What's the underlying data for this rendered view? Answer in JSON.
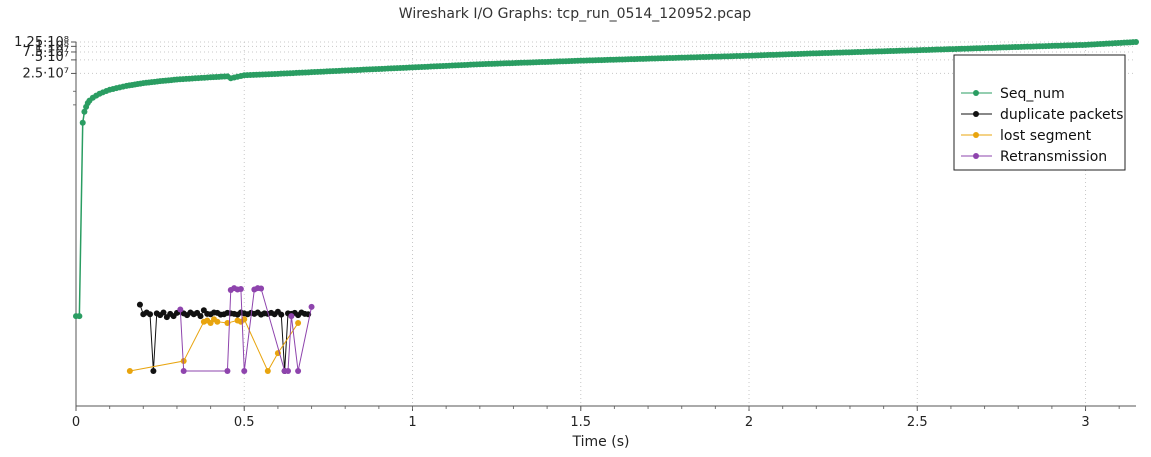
{
  "chart_data": {
    "type": "line",
    "title": "Wireshark I/O Graphs: tcp_run_0514_120952.pcap",
    "xlabel": "Time (s)",
    "ylabel": "",
    "x_ticks": [
      "0",
      "0.5",
      "1",
      "1.5",
      "2",
      "2.5",
      "3"
    ],
    "y_ticks": [
      "1.25·10⁸",
      "1·10⁸",
      "7.5·10⁷",
      "5·10⁷",
      "2.5·10⁷"
    ],
    "y_scale": "log",
    "xlim": [
      0,
      3.15
    ],
    "grid": true,
    "legend_position": "top-right",
    "series": [
      {
        "name": "Seq_num",
        "color": "#2a9d62",
        "x": [
          0.0,
          0.01,
          0.02,
          0.025,
          0.03,
          0.035,
          0.04,
          0.05,
          0.06,
          0.07,
          0.08,
          0.1,
          0.12,
          0.15,
          0.2,
          0.25,
          0.3,
          0.4,
          0.45,
          0.46,
          0.5,
          0.6,
          0.8,
          1.0,
          1.2,
          1.5,
          1.8,
          2.0,
          2.2,
          2.5,
          2.8,
          3.0,
          3.15
        ],
        "y": [
          100,
          100,
          2000000,
          3500000,
          4500000,
          5500000,
          6200000,
          7200000,
          8000000,
          8800000,
          9500000,
          10800000,
          11800000,
          13200000,
          15200000,
          16800000,
          18300000,
          20500000,
          21500000,
          19500000,
          22800000,
          24500000,
          29000000,
          34000000,
          40000000,
          48000000,
          56000000,
          62000000,
          70000000,
          82000000,
          97000000,
          108000000,
          125000000
        ]
      },
      {
        "name": "duplicate packets",
        "color": "#111111",
        "x": [
          0.19,
          0.2,
          0.21,
          0.22,
          0.23,
          0.24,
          0.25,
          0.26,
          0.27,
          0.28,
          0.29,
          0.3,
          0.31,
          0.32,
          0.33,
          0.34,
          0.35,
          0.36,
          0.37,
          0.38,
          0.39,
          0.4,
          0.41,
          0.42,
          0.43,
          0.44,
          0.45,
          0.46,
          0.47,
          0.48,
          0.49,
          0.5,
          0.51,
          0.52,
          0.53,
          0.54,
          0.55,
          0.56,
          0.57,
          0.58,
          0.59,
          0.6,
          0.61,
          0.62,
          0.63,
          0.64,
          0.65,
          0.66,
          0.67,
          0.68,
          0.69
        ],
        "y": [
          180,
          110,
          120,
          110,
          6,
          115,
          105,
          120,
          95,
          112,
          100,
          118,
          125,
          115,
          105,
          120,
          110,
          118,
          100,
          135,
          112,
          110,
          120,
          118,
          108,
          110,
          118,
          115,
          112,
          108,
          120,
          115,
          110,
          118,
          112,
          120,
          108,
          115,
          112,
          118,
          110,
          125,
          108,
          6,
          115,
          112,
          118,
          105,
          120,
          112,
          110
        ]
      },
      {
        "name": "lost segment",
        "color": "#e8a40e",
        "x": [
          0.16,
          0.32,
          0.38,
          0.39,
          0.4,
          0.41,
          0.42,
          0.45,
          0.48,
          0.49,
          0.5,
          0.57,
          0.6,
          0.66
        ],
        "y": [
          6,
          10,
          75,
          80,
          70,
          85,
          75,
          70,
          80,
          75,
          85,
          6,
          15,
          70
        ]
      },
      {
        "name": "Retransmission",
        "color": "#8e44ad",
        "x": [
          0.31,
          0.32,
          0.45,
          0.46,
          0.47,
          0.48,
          0.49,
          0.5,
          0.53,
          0.54,
          0.55,
          0.62,
          0.63,
          0.64,
          0.66,
          0.7
        ],
        "y": [
          140,
          6,
          6,
          380,
          420,
          390,
          400,
          6,
          390,
          420,
          410,
          6,
          6,
          100,
          6,
          160
        ]
      }
    ]
  }
}
